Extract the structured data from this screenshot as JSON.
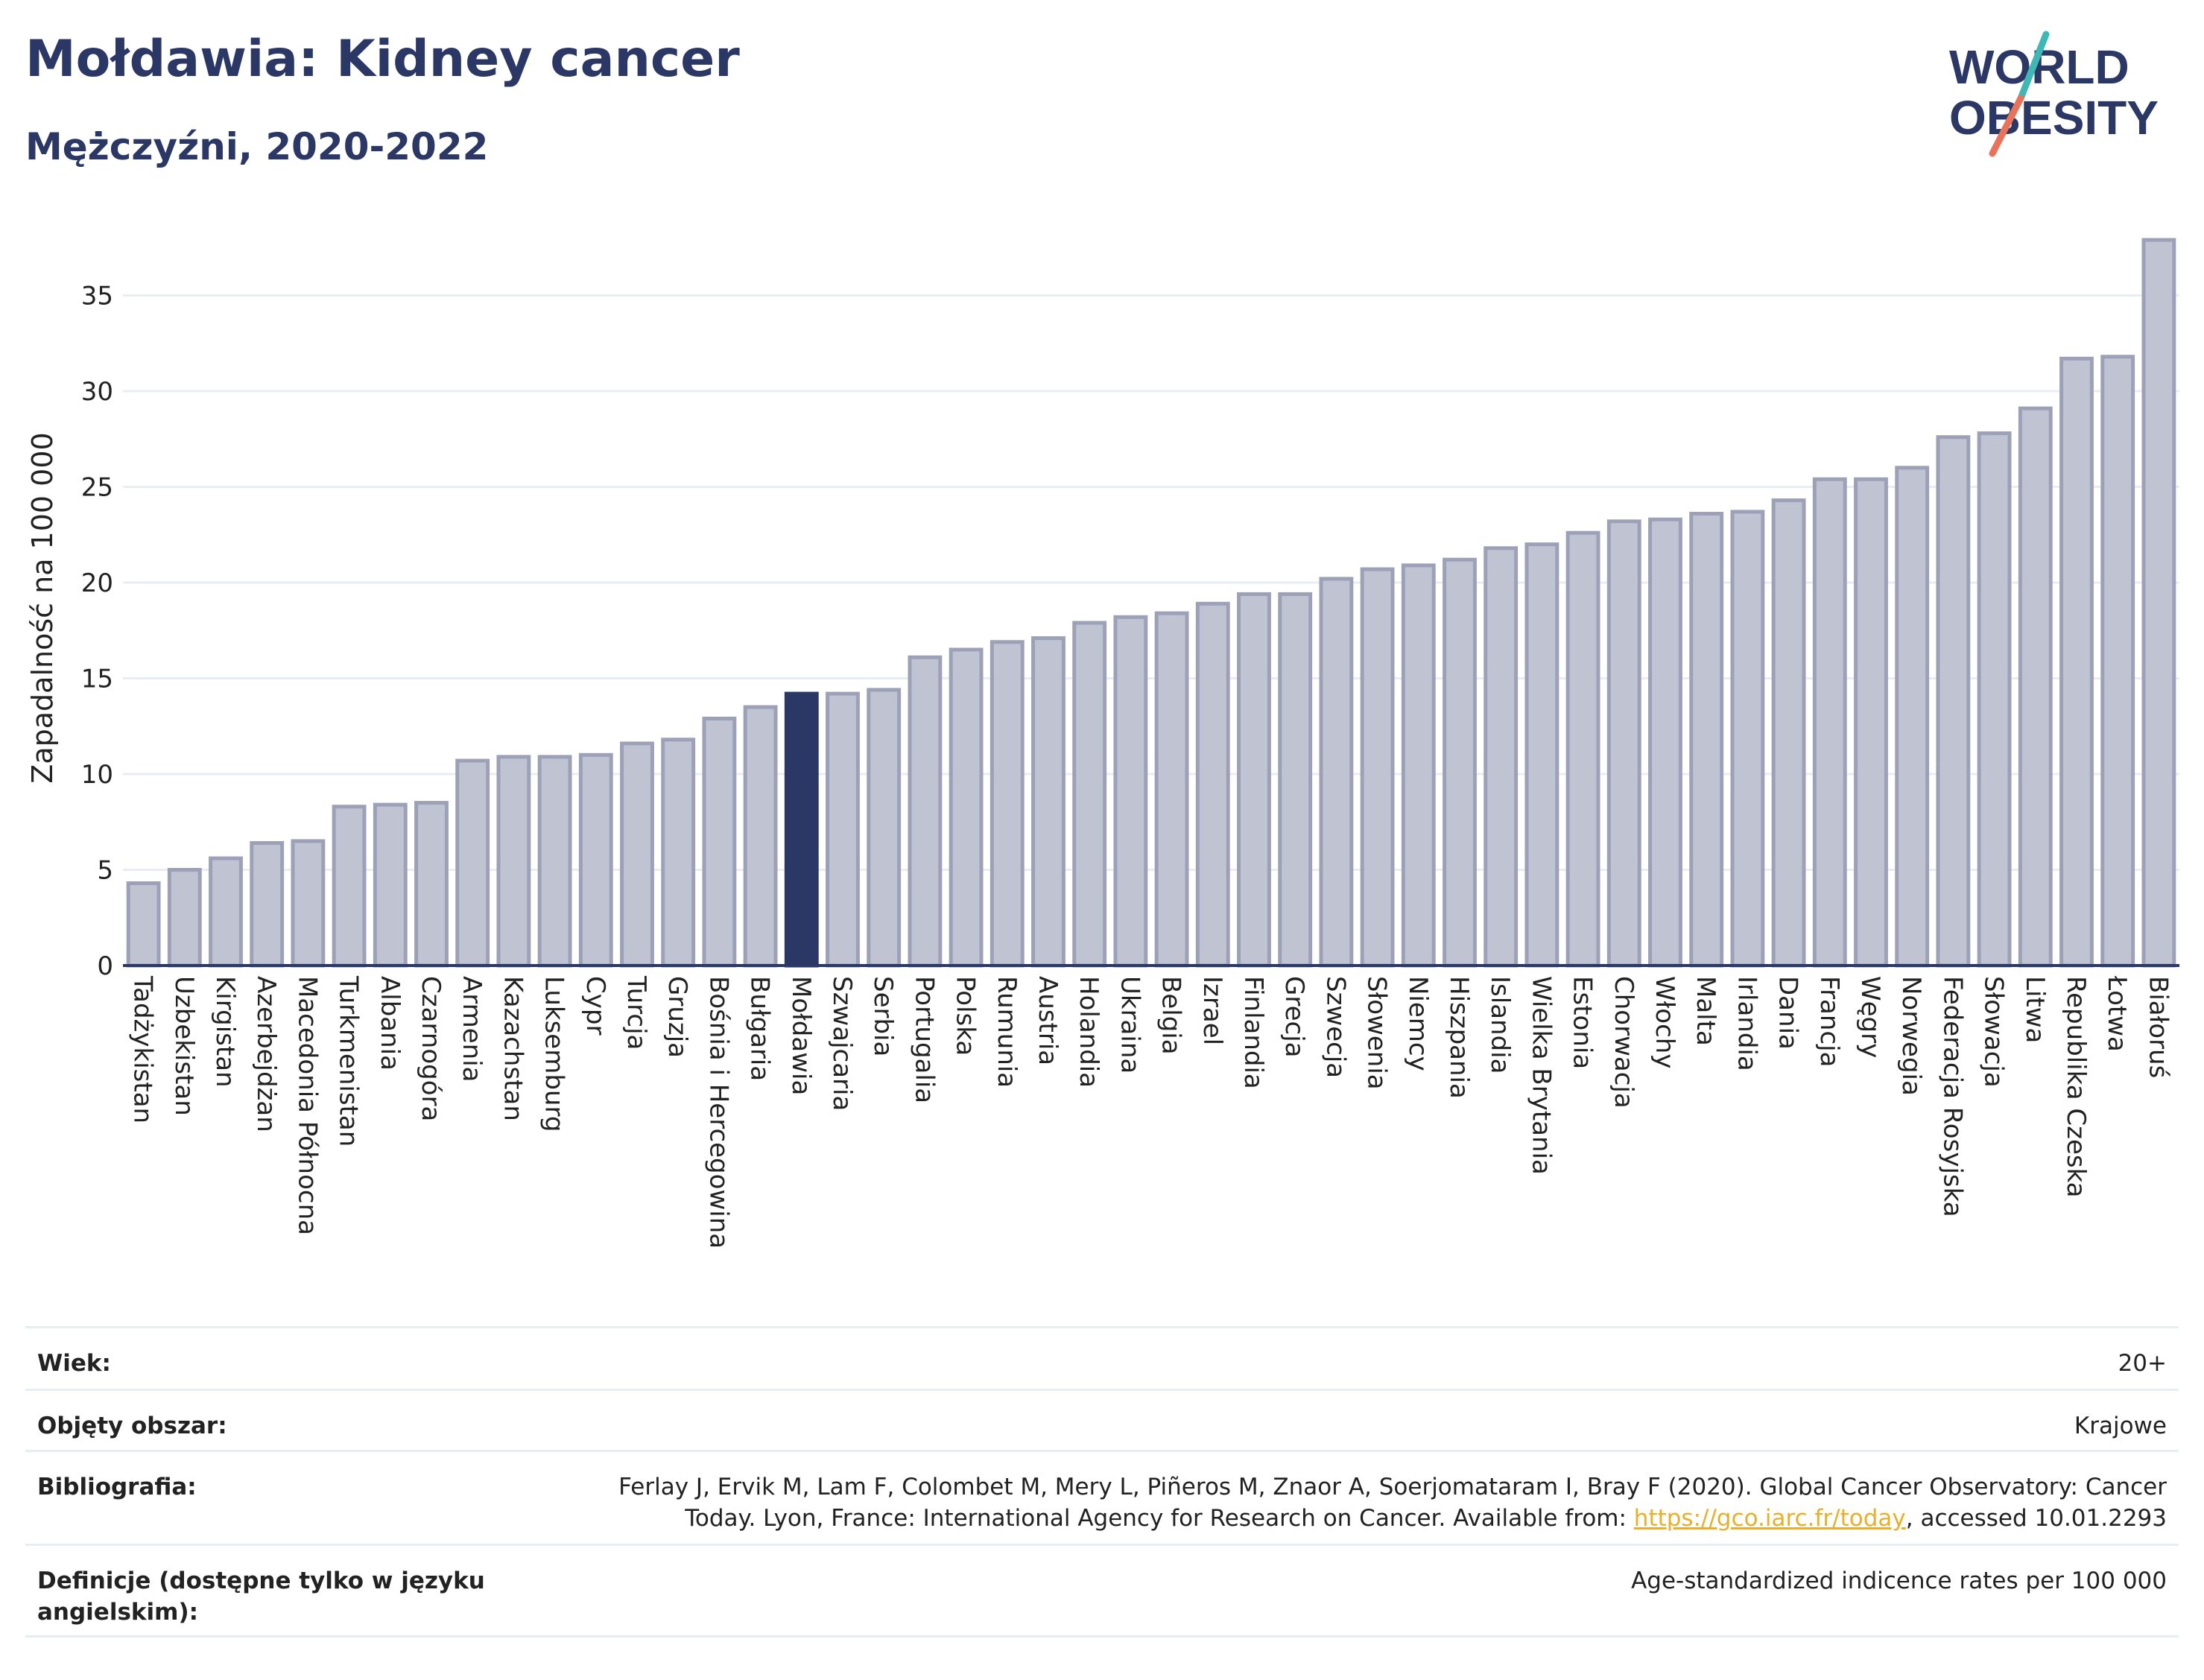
{
  "header": {
    "title": "Mołdawia: Kidney cancer",
    "subtitle": "Mężczyźni, 2020-2022"
  },
  "logo": {
    "line1": "WORLD",
    "line2": "OBESITY",
    "brand_color": "#2b3764",
    "accent_teal": "#3fb8b5",
    "accent_red": "#e8735a"
  },
  "colors": {
    "bar_default": "#c0c3d1",
    "bar_stroke": "#9da1b8",
    "bar_highlight": "#2b3764",
    "grid": "#e9edf3",
    "axis": "#2b3764"
  },
  "chart_data": {
    "type": "bar",
    "ylabel": "Zapadalność na 100 000",
    "ylim": [
      0,
      38.5
    ],
    "yticks": [
      0,
      5,
      10,
      15,
      20,
      25,
      30,
      35
    ],
    "grid": true,
    "highlight": "Mołdawia",
    "categories": [
      "Tadżykistan",
      "Uzbekistan",
      "Kirgistan",
      "Azerbejdżan",
      "Macedonia Północna",
      "Turkmenistan",
      "Albania",
      "Czarnogóra",
      "Armenia",
      "Kazachstan",
      "Luksemburg",
      "Cypr",
      "Turcja",
      "Gruzja",
      "Bośnia i Hercegowina",
      "Bułgaria",
      "Mołdawia",
      "Szwajcaria",
      "Serbia",
      "Portugalia",
      "Polska",
      "Rumunia",
      "Austria",
      "Holandia",
      "Ukraina",
      "Belgia",
      "Izrael",
      "Finlandia",
      "Grecja",
      "Szwecja",
      "Słowenia",
      "Niemcy",
      "Hiszpania",
      "Islandia",
      "Wielka Brytania",
      "Estonia",
      "Chorwacja",
      "Włochy",
      "Malta",
      "Irlandia",
      "Dania",
      "Francja",
      "Węgry",
      "Norwegia",
      "Federacja Rosyjska",
      "Słowacja",
      "Litwa",
      "Republika Czeska",
      "Łotwa",
      "Białoruś"
    ],
    "values": [
      4.3,
      5.0,
      5.6,
      6.4,
      6.5,
      8.3,
      8.4,
      8.5,
      10.7,
      10.9,
      10.9,
      11.0,
      11.6,
      11.8,
      12.9,
      13.5,
      14.2,
      14.2,
      14.4,
      16.1,
      16.5,
      16.9,
      17.1,
      17.9,
      18.2,
      18.4,
      18.9,
      19.4,
      19.4,
      20.2,
      20.7,
      20.9,
      21.2,
      21.8,
      22.0,
      22.6,
      23.2,
      23.3,
      23.6,
      23.7,
      24.3,
      25.4,
      25.4,
      26.0,
      27.6,
      27.8,
      29.1,
      31.7,
      31.8,
      37.9
    ]
  },
  "info": {
    "rows": [
      {
        "label": "Wiek:",
        "value": "20+"
      },
      {
        "label": "Objęty obszar:",
        "value": "Krajowe"
      },
      {
        "label": "Bibliografia:",
        "value_line1": "Ferlay J, Ervik M, Lam F, Colombet M, Mery L, Piñeros M, Znaor A, Soerjomataram I, Bray F (2020). Global Cancer Observatory: Cancer",
        "value_line2_pre": "Today. Lyon, France: International Agency for Research on Cancer. Available from: ",
        "link": "https://gco.iarc.fr/today",
        "value_line2_post": ", accessed 10.01.2293"
      },
      {
        "label": "Definicje (dostępne tylko w języku angielskim):",
        "value": "Age-standardized indicence rates per 100 000"
      }
    ]
  }
}
